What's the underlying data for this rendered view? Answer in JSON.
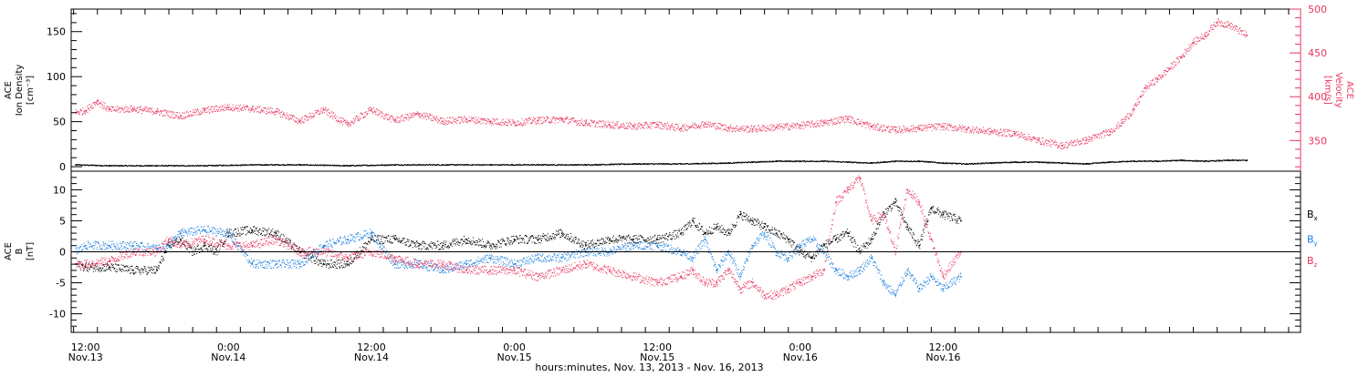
{
  "chart_data": [
    {
      "type": "scatter",
      "panel": "top",
      "ylabel_left": [
        "ACE",
        "Ion Density",
        "[cm⁻³]"
      ],
      "ylabel_right": [
        "ACE",
        "Velocity",
        "[km/s]"
      ],
      "left_axis": {
        "ylim": [
          -5,
          175
        ],
        "ticks": [
          0,
          50,
          100,
          150
        ]
      },
      "right_axis": {
        "ylim": [
          315,
          500
        ],
        "ticks": [
          350,
          400,
          450,
          500
        ],
        "color": "#e8365f"
      },
      "series": [
        {
          "axis": "left",
          "color": "#000000",
          "x": [
            -0.8,
            2,
            6,
            10,
            14,
            18,
            22,
            26,
            30,
            34,
            38,
            42,
            46,
            50,
            54,
            56,
            58,
            60,
            62,
            64,
            66,
            68,
            70,
            72,
            74,
            76,
            78,
            80,
            82,
            84,
            86,
            88,
            90,
            92,
            94,
            96,
            97.5
          ],
          "y": [
            2,
            1,
            1,
            1,
            2,
            2,
            1,
            2,
            2,
            2,
            2,
            2,
            3,
            3,
            4,
            5,
            6,
            6,
            6,
            5,
            4,
            6,
            6,
            4,
            3,
            4,
            5,
            5,
            4,
            3,
            5,
            6,
            6,
            7,
            6,
            7,
            7
          ]
        },
        {
          "axis": "right",
          "color": "#e8365f",
          "x": [
            -0.8,
            0,
            1,
            2,
            4,
            6,
            8,
            10,
            12,
            14,
            16,
            18,
            20,
            22,
            24,
            26,
            28,
            30,
            32,
            34,
            36,
            38,
            40,
            42,
            44,
            46,
            48,
            50,
            52,
            54,
            56,
            58,
            60,
            62,
            64,
            66,
            68,
            70,
            72,
            74,
            76,
            78,
            80,
            82,
            84,
            86,
            87,
            88,
            89,
            90,
            91,
            92,
            93,
            94,
            95,
            96,
            97.5
          ],
          "y": [
            382,
            384,
            395,
            385,
            386,
            383,
            378,
            384,
            388,
            386,
            383,
            372,
            385,
            368,
            385,
            373,
            380,
            372,
            374,
            372,
            370,
            373,
            374,
            370,
            368,
            366,
            368,
            364,
            369,
            364,
            363,
            365,
            367,
            370,
            375,
            366,
            362,
            364,
            366,
            363,
            360,
            358,
            350,
            344,
            350,
            360,
            370,
            385,
            410,
            420,
            432,
            445,
            462,
            470,
            485,
            482,
            470
          ]
        }
      ]
    },
    {
      "type": "scatter",
      "panel": "bottom",
      "ylabel": [
        "ACE",
        "B",
        "[nT]"
      ],
      "ylim": [
        -13,
        13
      ],
      "ticks": [
        -10,
        -5,
        0,
        5,
        10
      ],
      "zero_line": true,
      "x_axis": {
        "range_hours": [
          -1.2,
          102
        ],
        "tick_labels": [
          {
            "x": 0,
            "time": "12:00",
            "date": "Nov.13"
          },
          {
            "x": 12,
            "time": "0:00",
            "date": "Nov.14"
          },
          {
            "x": 24,
            "time": "12:00",
            "date": "Nov.14"
          },
          {
            "x": 36,
            "time": "0:00",
            "date": "Nov.15"
          },
          {
            "x": 48,
            "time": "12:00",
            "date": "Nov.15"
          },
          {
            "x": 60,
            "time": "0:00",
            "date": "Nov.16"
          },
          {
            "x": 72,
            "time": "12:00",
            "date": "Nov.16"
          }
        ],
        "title": "hours:minutes, Nov. 13, 2013 - Nov. 16, 2013"
      },
      "series": [
        {
          "name": "Bx",
          "label_main": "B",
          "label_sub": "x",
          "color": "#000000",
          "x": [
            -0.8,
            0,
            2,
            4,
            6,
            7,
            8,
            9,
            10,
            11,
            12,
            14,
            16,
            18,
            20,
            22,
            24,
            26,
            28,
            30,
            32,
            34,
            36,
            38,
            40,
            42,
            44,
            46,
            48,
            50,
            51,
            52,
            53,
            54,
            55,
            56,
            57,
            58,
            59,
            60,
            61,
            62,
            63,
            64,
            65,
            66,
            67,
            68,
            69,
            70,
            71,
            72,
            73.5
          ],
          "y": [
            -2,
            -2.5,
            -2.5,
            -3,
            -3,
            1,
            2,
            0,
            1,
            0,
            3,
            3.5,
            3,
            0,
            -2,
            -2,
            2,
            2,
            1,
            1,
            2,
            1,
            2,
            2,
            3,
            1,
            2,
            2,
            2,
            3,
            5,
            3,
            4,
            3,
            6,
            5,
            4,
            3,
            2,
            0,
            -1,
            1,
            2,
            3,
            0,
            2,
            6,
            8,
            4,
            1,
            7,
            6,
            5
          ]
        },
        {
          "name": "By",
          "label_main": "B",
          "label_sub": "y",
          "color": "#1a7ee0",
          "x": [
            -0.8,
            0,
            2,
            4,
            6,
            7,
            8,
            10,
            12,
            14,
            16,
            18,
            20,
            22,
            24,
            26,
            28,
            30,
            32,
            34,
            36,
            38,
            40,
            42,
            44,
            46,
            48,
            50,
            51,
            52,
            53,
            54,
            55,
            56,
            57,
            58,
            59,
            60,
            61,
            62,
            63,
            64,
            65,
            66,
            67,
            68,
            69,
            70,
            71,
            72,
            73.5
          ],
          "y": [
            0,
            1,
            1,
            1,
            0.5,
            1,
            3,
            3.5,
            3,
            -2,
            -2,
            -2,
            1,
            2,
            3,
            -2,
            -2,
            -3,
            -2,
            -1,
            -2,
            -1,
            -1,
            0,
            0,
            1,
            1,
            0,
            -1,
            2,
            -3,
            0,
            -4,
            1,
            3,
            0,
            -1,
            1,
            2,
            0,
            -3,
            -4,
            -3,
            -1,
            -5,
            -7,
            -3,
            -6,
            -4,
            -6,
            -4
          ]
        },
        {
          "name": "Bz",
          "label_main": "B",
          "label_sub": "z",
          "color": "#e8365f",
          "x": [
            -0.8,
            0,
            2,
            4,
            6,
            7,
            8,
            10,
            12,
            14,
            16,
            18,
            20,
            22,
            24,
            26,
            28,
            30,
            32,
            34,
            36,
            38,
            40,
            42,
            44,
            46,
            48,
            50,
            51,
            52,
            53,
            54,
            55,
            56,
            57,
            58,
            59,
            60,
            61,
            62,
            63,
            64,
            65,
            66,
            67,
            68,
            69,
            70,
            71,
            72,
            73.5
          ],
          "y": [
            -2,
            -2,
            -1.5,
            0,
            0,
            2,
            1,
            2,
            1,
            1,
            2,
            0,
            0,
            -1,
            0,
            -1,
            -2,
            -2,
            -3,
            -3,
            -3,
            -4,
            -3,
            -2,
            -3,
            -4,
            -5,
            -4,
            -3,
            -5,
            -5,
            -3,
            -6,
            -5,
            -7,
            -7,
            -6,
            -5,
            -4,
            -3,
            8,
            10,
            12,
            5,
            6,
            0,
            10,
            8,
            2,
            -4,
            0
          ]
        }
      ]
    }
  ]
}
